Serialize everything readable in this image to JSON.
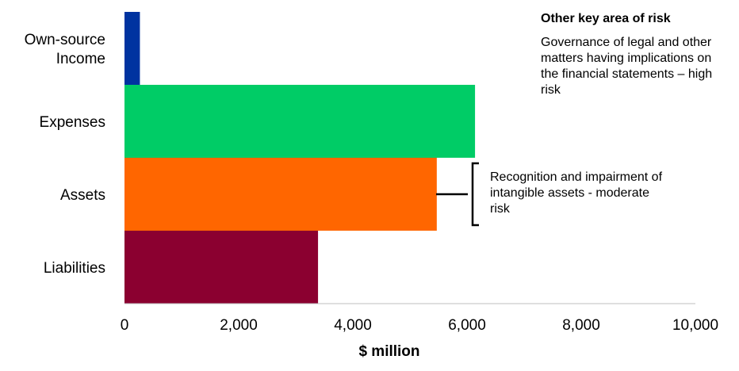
{
  "chart_data": {
    "type": "bar",
    "orientation": "horizontal",
    "categories": [
      "Own-source Income",
      "Expenses",
      "Assets",
      "Liabilities"
    ],
    "category_lines": [
      [
        "Own-source",
        "Income"
      ],
      [
        "Expenses"
      ],
      [
        "Assets"
      ],
      [
        "Liabilities"
      ]
    ],
    "values": [
      270,
      6140,
      5470,
      3390
    ],
    "colors": [
      "#0033a0",
      "#00cc66",
      "#ff6600",
      "#8b0030"
    ],
    "xlabel": "$ million",
    "ylabel": "",
    "xlim": [
      0,
      10000
    ],
    "xticks": [
      0,
      2000,
      4000,
      6000,
      8000,
      10000
    ],
    "xtick_labels": [
      "0",
      "2,000",
      "4,000",
      "6,000",
      "8,000",
      "10,000"
    ],
    "grid": false,
    "legend": "none"
  },
  "annotations": {
    "other_risk_heading": "Other key area of risk",
    "other_risk_text": "Governance of legal and other matters having implications on the financial statements – high risk",
    "asset_risk_text": "Recognition and impairment of intangible assets - moderate risk",
    "asset_risk_category": "Assets"
  }
}
